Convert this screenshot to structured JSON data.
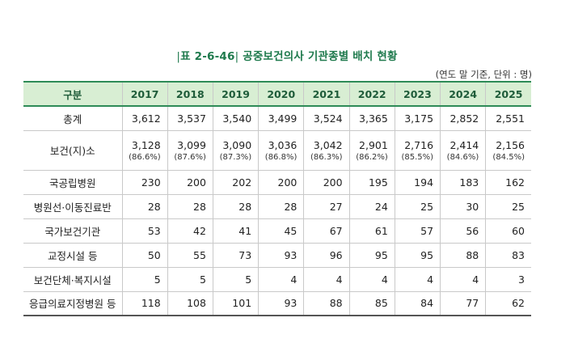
{
  "caption": {
    "prefix": "|",
    "number": "표 2-6-46",
    "sep": "|",
    "title": "공중보건의사 기관종별 배치 현황"
  },
  "unit": "(연도 말 기준, 단위 : 명)",
  "table": {
    "header_label": "구분",
    "years": [
      "2017",
      "2018",
      "2019",
      "2020",
      "2021",
      "2022",
      "2023",
      "2024",
      "2025"
    ],
    "rows": [
      {
        "label": "총계",
        "values": [
          "3,612",
          "3,537",
          "3,540",
          "3,499",
          "3,524",
          "3,365",
          "3,175",
          "2,852",
          "2,551"
        ]
      },
      {
        "label": "보건(지)소",
        "values": [
          "3,128",
          "3,099",
          "3,090",
          "3,036",
          "3,042",
          "2,901",
          "2,716",
          "2,414",
          "2,156"
        ],
        "pcts": [
          "(86.6%)",
          "(87.6%)",
          "(87.3%)",
          "(86.8%)",
          "(86.3%)",
          "(86.2%)",
          "(85.5%)",
          "(84.6%)",
          "(84.5%)"
        ]
      },
      {
        "label": "국공립병원",
        "values": [
          "230",
          "200",
          "202",
          "200",
          "200",
          "195",
          "194",
          "183",
          "162"
        ]
      },
      {
        "label": "병원선·이동진료반",
        "values": [
          "28",
          "28",
          "28",
          "28",
          "27",
          "24",
          "25",
          "30",
          "25"
        ]
      },
      {
        "label": "국가보건기관",
        "values": [
          "53",
          "42",
          "41",
          "45",
          "67",
          "61",
          "57",
          "56",
          "60"
        ]
      },
      {
        "label": "교정시설 등",
        "values": [
          "50",
          "55",
          "73",
          "93",
          "96",
          "95",
          "95",
          "88",
          "83"
        ]
      },
      {
        "label": "보건단체·복지시설",
        "values": [
          "5",
          "5",
          "5",
          "4",
          "4",
          "4",
          "4",
          "4",
          "3"
        ]
      },
      {
        "label": "응급의료지정병원 등",
        "values": [
          "118",
          "108",
          "101",
          "93",
          "88",
          "85",
          "84",
          "77",
          "62"
        ]
      }
    ]
  }
}
